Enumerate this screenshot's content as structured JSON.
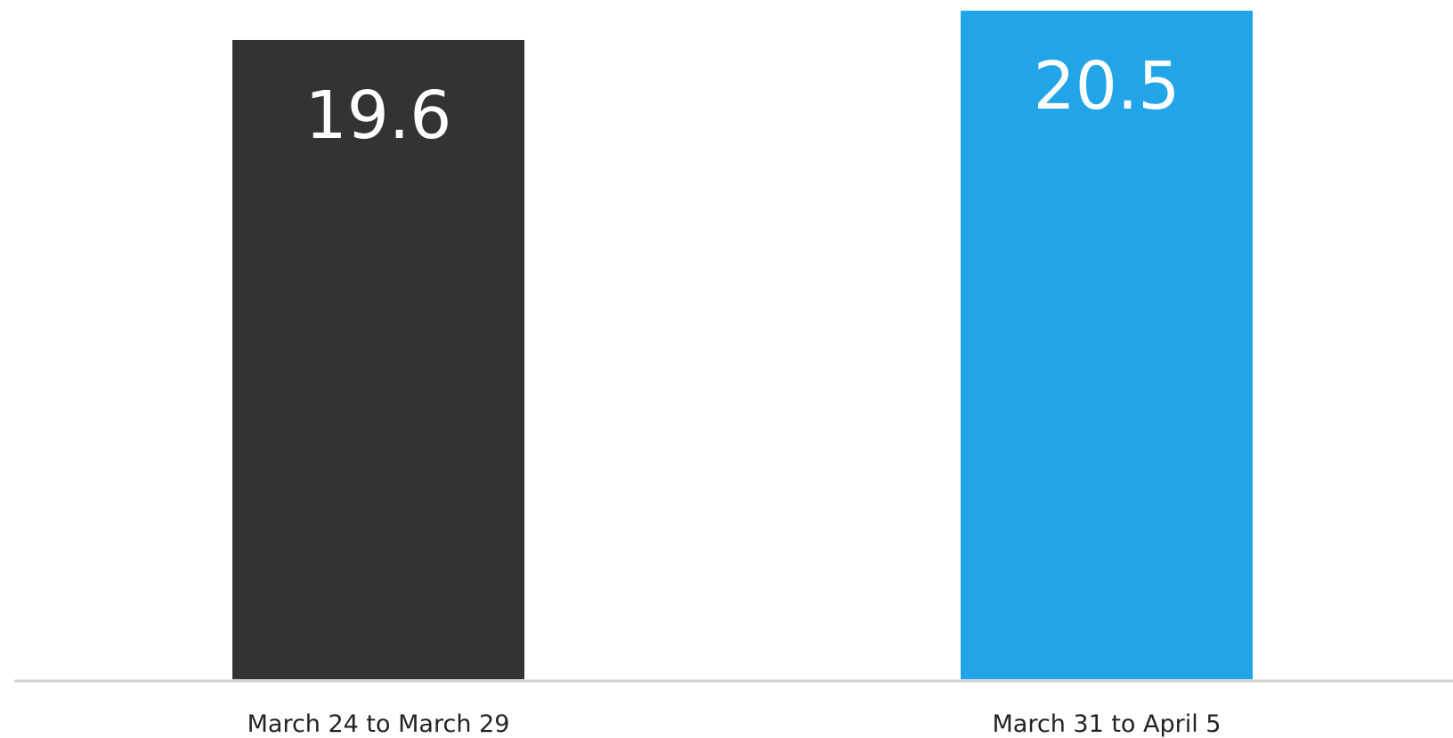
{
  "chart_data": {
    "type": "bar",
    "categories": [
      "March 24 to March 29",
      "March 31 to April 5"
    ],
    "values": [
      19.6,
      20.5
    ],
    "value_labels": [
      "19.6",
      "20.5"
    ],
    "colors": [
      "#333333",
      "#21A5E8"
    ],
    "axis_color": "#d0d0d0",
    "ylim": [
      0,
      20.5
    ],
    "grid": false,
    "legend": "none"
  }
}
